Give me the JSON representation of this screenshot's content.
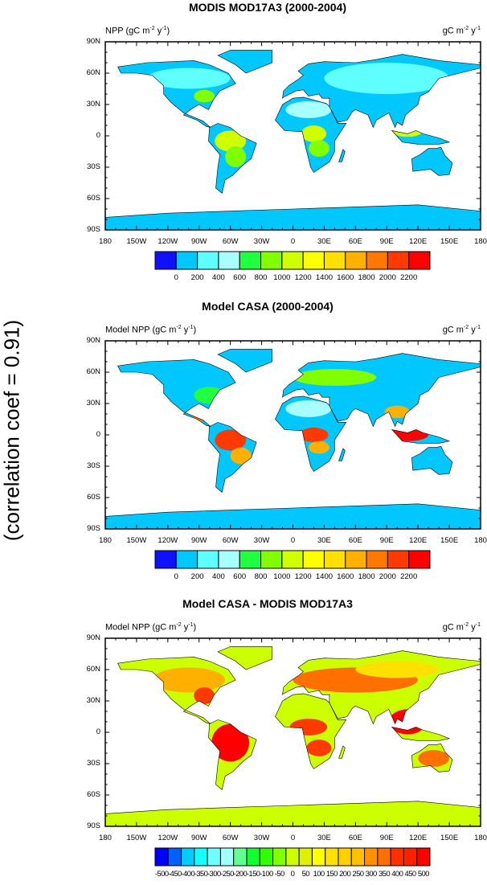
{
  "correlation_label": "(correlation coef =  0.91)",
  "lon_ticks": [
    "180",
    "150W",
    "120W",
    "90W",
    "60W",
    "30W",
    "0",
    "30E",
    "60E",
    "90E",
    "120E",
    "150E",
    "180"
  ],
  "lat_ticks": [
    "90N",
    "60N",
    "30N",
    "0",
    "30S",
    "60S",
    "90S"
  ],
  "panels": [
    {
      "title": "MODIS MOD17A3 (2000-2004)",
      "left_label": "NPP (gC m",
      "left_sup1": "-2",
      "left_mid": " y",
      "left_sup2": "-1",
      "left_end": ")",
      "right_label": "gC m",
      "right_sup1": "-2",
      "right_mid": " y",
      "right_sup2": "-1",
      "scheme": "modis",
      "colorbar": {
        "colors": [
          "#1010ff",
          "#00c8ff",
          "#60ffff",
          "#a8ffff",
          "#20ff40",
          "#80ff00",
          "#d0ff00",
          "#ffff00",
          "#ffe000",
          "#ffb000",
          "#ff7800",
          "#ff3a00",
          "#ff0000"
        ],
        "labels": [
          "0",
          "200",
          "400",
          "600",
          "800",
          "1000",
          "1200",
          "1400",
          "1600",
          "1800",
          "2000",
          "2200"
        ]
      }
    },
    {
      "title": "Model CASA (2000-2004)",
      "left_label": "Model NPP (gC m",
      "left_sup1": "-2",
      "left_mid": " y",
      "left_sup2": "-1",
      "left_end": ")",
      "right_label": "gC m",
      "right_sup1": "-2",
      "right_mid": " y",
      "right_sup2": "-1",
      "scheme": "casa",
      "colorbar": {
        "colors": [
          "#1010ff",
          "#00c8ff",
          "#60ffff",
          "#a8ffff",
          "#20ff40",
          "#80ff00",
          "#d0ff00",
          "#ffff00",
          "#ffe000",
          "#ffb000",
          "#ff7800",
          "#ff3a00",
          "#ff0000"
        ],
        "labels": [
          "0",
          "200",
          "400",
          "600",
          "800",
          "1000",
          "1200",
          "1400",
          "1600",
          "1800",
          "2000",
          "2200"
        ]
      }
    },
    {
      "title": "Model CASA - MODIS MOD17A3",
      "left_label": "Model NPP (gC m",
      "left_sup1": "-2",
      "left_mid": " y",
      "left_sup2": "-1",
      "left_end": ")",
      "right_label": "gC m",
      "right_sup1": "-2",
      "right_mid": " y",
      "right_sup2": "-1",
      "scheme": "diff",
      "colorbar": {
        "colors": [
          "#0000ff",
          "#0060ff",
          "#00ccff",
          "#10ffff",
          "#70ffff",
          "#a0ffff",
          "#60ff90",
          "#10ff30",
          "#30ff00",
          "#80ff00",
          "#ccff00",
          "#e0f000",
          "#ffff00",
          "#ffe000",
          "#ffd000",
          "#ffc000",
          "#ff9000",
          "#ff7000",
          "#ff3000",
          "#ff2000",
          "#ff0000"
        ],
        "labels": [
          "-500",
          "-450",
          "-400",
          "-350",
          "-300",
          "-250",
          "-200",
          "-150",
          "-100",
          "-50",
          "0",
          "50",
          "100",
          "150",
          "200",
          "250",
          "300",
          "350",
          "400",
          "450",
          "500"
        ]
      }
    }
  ]
}
